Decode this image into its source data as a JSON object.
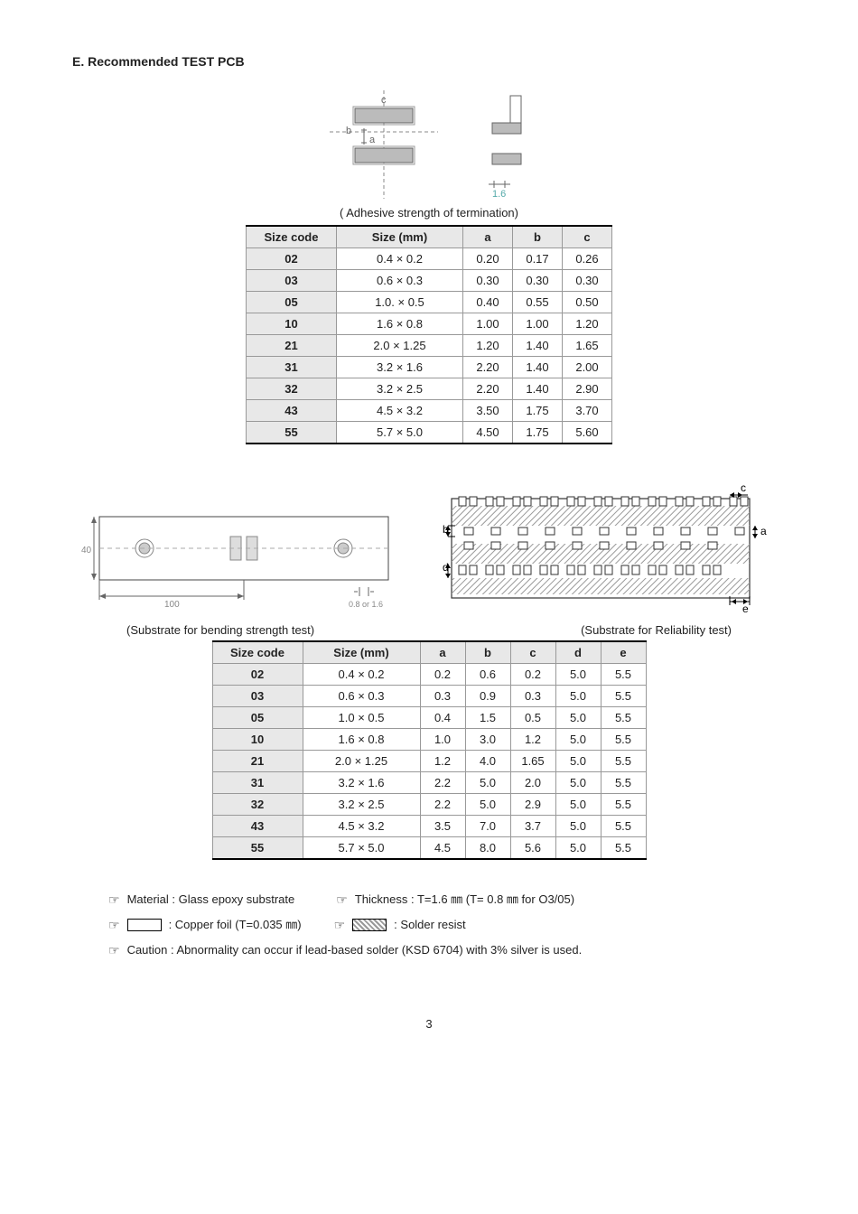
{
  "section_title": "E. Recommended TEST PCB",
  "table1": {
    "caption": "( Adhesive strength of termination)",
    "columns": [
      "Size code",
      "Size (mm)",
      "a",
      "b",
      "c"
    ],
    "rows": [
      [
        "02",
        "0.4 × 0.2",
        "0.20",
        "0.17",
        "0.26"
      ],
      [
        "03",
        "0.6 × 0.3",
        "0.30",
        "0.30",
        "0.30"
      ],
      [
        "05",
        "1.0. × 0.5",
        "0.40",
        "0.55",
        "0.50"
      ],
      [
        "10",
        "1.6 × 0.8",
        "1.00",
        "1.00",
        "1.20"
      ],
      [
        "21",
        "2.0 × 1.25",
        "1.20",
        "1.40",
        "1.65"
      ],
      [
        "31",
        "3.2 × 1.6",
        "2.20",
        "1.40",
        "2.00"
      ],
      [
        "32",
        "3.2 × 2.5",
        "2.20",
        "1.40",
        "2.90"
      ],
      [
        "43",
        "4.5 × 3.2",
        "3.50",
        "1.75",
        "3.70"
      ],
      [
        "55",
        "5.7 × 5.0",
        "4.50",
        "1.75",
        "5.60"
      ]
    ]
  },
  "table2": {
    "caption_left": "(Substrate for bending strength test)",
    "caption_right": "(Substrate for Reliability test)",
    "columns": [
      "Size code",
      "Size (mm)",
      "a",
      "b",
      "c",
      "d",
      "e"
    ],
    "rows": [
      [
        "02",
        "0.4 × 0.2",
        "0.2",
        "0.6",
        "0.2",
        "5.0",
        "5.5"
      ],
      [
        "03",
        "0.6 × 0.3",
        "0.3",
        "0.9",
        "0.3",
        "5.0",
        "5.5"
      ],
      [
        "05",
        "1.0 × 0.5",
        "0.4",
        "1.5",
        "0.5",
        "5.0",
        "5.5"
      ],
      [
        "10",
        "1.6 × 0.8",
        "1.0",
        "3.0",
        "1.2",
        "5.0",
        "5.5"
      ],
      [
        "21",
        "2.0 × 1.25",
        "1.2",
        "4.0",
        "1.65",
        "5.0",
        "5.5"
      ],
      [
        "31",
        "3.2 × 1.6",
        "2.2",
        "5.0",
        "2.0",
        "5.0",
        "5.5"
      ],
      [
        "32",
        "3.2 × 2.5",
        "2.2",
        "5.0",
        "2.9",
        "5.0",
        "5.5"
      ],
      [
        "43",
        "4.5 × 3.2",
        "3.5",
        "7.0",
        "3.7",
        "5.0",
        "5.5"
      ],
      [
        "55",
        "5.7 × 5.0",
        "4.5",
        "8.0",
        "5.6",
        "5.0",
        "5.5"
      ]
    ]
  },
  "diagram1": {
    "dim16": "1.6",
    "a_label": "a",
    "b_label": "b",
    "c_label": "c"
  },
  "diagram_bend": {
    "width": "100",
    "width_label": "40",
    "tick": "0.8 or 1.6"
  },
  "diagram_rel": {
    "a": "a",
    "b": "b",
    "c": "c",
    "d": "d",
    "e": "e"
  },
  "notes": {
    "material": "Material : Glass epoxy substrate",
    "thickness": "Thickness : T=1.6 ㎜ (T= 0.8 ㎜ for O3/05)",
    "copper": ": Copper foil (T=0.035 ㎜)",
    "solder": ": Solder resist",
    "caution": "Caution : Abnormality can occur if lead-based solder (KSD 6704) with 3% silver is used."
  },
  "page_number": "3",
  "colors": {
    "header_bg": "#e8e8e8",
    "border": "#999999",
    "strong_border": "#000000"
  }
}
